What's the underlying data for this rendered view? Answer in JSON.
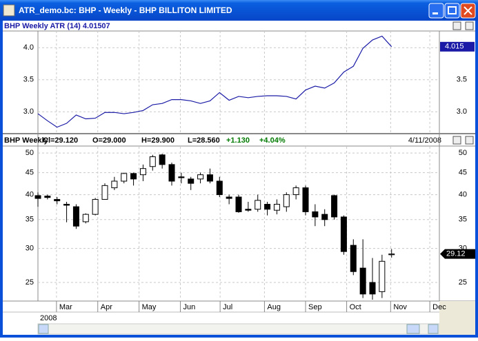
{
  "window": {
    "title": "ATR_demo.bc: BHP - Weekly - BHP BILLITON LIMITED",
    "year": "2008"
  },
  "chart_data": [
    {
      "type": "line",
      "title": "BHP Weekly ATR (14) 4.01507",
      "last_label": "4.015",
      "color": "#1a1aa6",
      "x": [
        0,
        1,
        2,
        3,
        4,
        5,
        6,
        7,
        8,
        9,
        10,
        11,
        12,
        13,
        14,
        15,
        16,
        17,
        18,
        19,
        20,
        21,
        22,
        23,
        24,
        25,
        26,
        27,
        28,
        29,
        30,
        31,
        32,
        33,
        34,
        35,
        36,
        37
      ],
      "values": [
        2.97,
        2.86,
        2.76,
        2.82,
        2.95,
        2.89,
        2.9,
        2.99,
        2.99,
        2.97,
        2.99,
        3.02,
        3.11,
        3.13,
        3.19,
        3.19,
        3.17,
        3.13,
        3.17,
        3.3,
        3.18,
        3.24,
        3.22,
        3.24,
        3.25,
        3.25,
        3.24,
        3.2,
        3.34,
        3.4,
        3.37,
        3.45,
        3.62,
        3.71,
        3.99,
        4.12,
        4.18,
        4.015
      ],
      "xlim": [
        0,
        42
      ],
      "ylim": [
        2.67,
        4.26
      ],
      "yticks": [
        {
          "value": 4,
          "label": "4.0"
        },
        3.5,
        {
          "value": 3,
          "label": "3.0"
        }
      ],
      "grid": true
    },
    {
      "type": "candlestick",
      "title": "BHP Weekly",
      "stats": [
        "Cl=29.120",
        "O=29.000",
        "H=29.900",
        "L=28.560",
        "+1.130",
        "+4.04%"
      ],
      "date": "4/11/2008",
      "last_label": "29.12",
      "log_scale": true,
      "up_color": "#ffffff",
      "down_color": "#000000",
      "x": [
        0,
        1,
        2,
        3,
        4,
        5,
        6,
        7,
        8,
        9,
        10,
        11,
        12,
        13,
        14,
        15,
        16,
        17,
        18,
        19,
        20,
        21,
        22,
        23,
        24,
        25,
        26,
        27,
        28,
        29,
        30,
        31,
        32,
        33,
        34,
        35,
        36,
        37
      ],
      "open": [
        39.8,
        39.7,
        39,
        38,
        37.5,
        34.6,
        36,
        39,
        41.5,
        43,
        44.8,
        44.5,
        46.5,
        49.5,
        47,
        44,
        43.5,
        43.5,
        44.5,
        43,
        39.5,
        39.5,
        37,
        37,
        38,
        36.8,
        37.5,
        40,
        41.5,
        36.5,
        36,
        39.8,
        35.5,
        30.5,
        27,
        25,
        23.8,
        29
      ],
      "high": [
        40.5,
        40,
        39.5,
        38.5,
        38,
        36.2,
        39.3,
        42.5,
        44,
        45,
        45,
        47,
        49.5,
        49.8,
        47.5,
        45,
        44,
        45,
        46,
        44,
        40,
        40,
        38.5,
        40,
        38.5,
        39,
        40.5,
        42,
        42,
        38,
        37,
        40,
        35.8,
        31.5,
        31.5,
        28.5,
        29,
        29.9
      ],
      "low": [
        37.5,
        39,
        38,
        34.5,
        33.3,
        34.3,
        35.8,
        39,
        41,
        42.5,
        42,
        43,
        45.5,
        46,
        42,
        42.5,
        41,
        42.5,
        42.5,
        39.5,
        38,
        36.3,
        36.5,
        36.5,
        35.8,
        36,
        36.5,
        39,
        35.8,
        33.8,
        33.8,
        35,
        29,
        26,
        23,
        22.8,
        23,
        28.56
      ],
      "close": [
        39.2,
        39.4,
        38.7,
        37.8,
        33.8,
        36,
        39,
        42,
        43,
        44.8,
        43.5,
        46,
        49,
        47,
        43,
        43.8,
        42.5,
        44.5,
        43,
        40,
        39.2,
        36.5,
        36.8,
        38.8,
        37,
        38,
        40,
        41.5,
        36.5,
        35.5,
        35,
        35.5,
        29.5,
        26.5,
        23.5,
        23.5,
        28,
        29.12
      ],
      "xlim": [
        0,
        42
      ],
      "ylim": [
        22.8,
        51.7
      ],
      "xticks": [
        {
          "value": 1.94,
          "label": "Mar"
        },
        {
          "value": 6.26,
          "label": "Apr"
        },
        {
          "value": 10.58,
          "label": "May"
        },
        {
          "value": 14.9,
          "label": "Jun"
        },
        {
          "value": 19.06,
          "label": "Jul"
        },
        {
          "value": 23.7,
          "label": "Aug"
        },
        {
          "value": 28,
          "label": "Sep"
        },
        {
          "value": 32.3,
          "label": "Oct"
        },
        {
          "value": 36.9,
          "label": "Nov"
        },
        {
          "value": 41,
          "label": "Dec"
        }
      ],
      "yticks": [
        50,
        45,
        40,
        35,
        30,
        25
      ],
      "grid": true
    }
  ]
}
